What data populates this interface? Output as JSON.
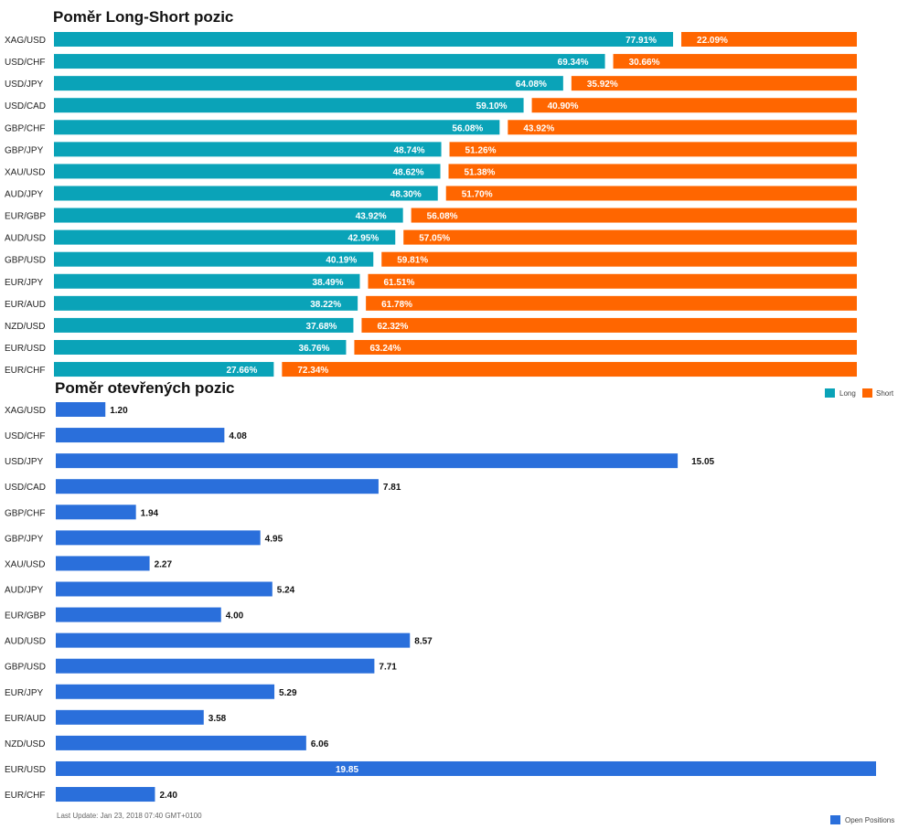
{
  "chart_data": [
    {
      "type": "bar",
      "title": "Poměr Long-Short pozic",
      "orientation": "horizontal",
      "stacked": true,
      "categories": [
        "XAG/USD",
        "USD/CHF",
        "USD/JPY",
        "USD/CAD",
        "GBP/CHF",
        "GBP/JPY",
        "XAU/USD",
        "AUD/JPY",
        "EUR/GBP",
        "AUD/USD",
        "GBP/USD",
        "EUR/JPY",
        "EUR/AUD",
        "NZD/USD",
        "EUR/USD",
        "EUR/CHF"
      ],
      "series": [
        {
          "name": "Long",
          "color": "#0aa3b8",
          "values": [
            77.91,
            69.34,
            64.08,
            59.1,
            56.08,
            48.74,
            48.62,
            48.3,
            43.92,
            42.95,
            40.19,
            38.49,
            38.22,
            37.68,
            36.76,
            27.66
          ]
        },
        {
          "name": "Short",
          "color": "#ff6600",
          "values": [
            22.09,
            30.66,
            35.92,
            40.9,
            43.92,
            51.26,
            51.38,
            51.7,
            56.08,
            57.05,
            59.81,
            61.51,
            61.78,
            62.32,
            63.24,
            72.34
          ]
        }
      ],
      "labels_long": [
        "77.91%",
        "69.34%",
        "64.08%",
        "59.10%",
        "56.08%",
        "48.74%",
        "48.62%",
        "48.30%",
        "43.92%",
        "42.95%",
        "40.19%",
        "38.49%",
        "38.22%",
        "37.68%",
        "36.76%",
        "27.66%"
      ],
      "labels_short": [
        "22.09%",
        "30.66%",
        "35.92%",
        "40.90%",
        "43.92%",
        "51.26%",
        "51.38%",
        "51.70%",
        "56.08%",
        "57.05%",
        "59.81%",
        "61.51%",
        "61.78%",
        "62.32%",
        "63.24%",
        "72.34%"
      ],
      "xlim": [
        0,
        100
      ],
      "legend": "top-right",
      "grid": false
    },
    {
      "type": "bar",
      "title": "Poměr otevřených pozic",
      "orientation": "horizontal",
      "categories": [
        "XAG/USD",
        "USD/CHF",
        "USD/JPY",
        "USD/CAD",
        "GBP/CHF",
        "GBP/JPY",
        "XAU/USD",
        "AUD/JPY",
        "EUR/GBP",
        "AUD/USD",
        "GBP/USD",
        "EUR/JPY",
        "EUR/AUD",
        "NZD/USD",
        "EUR/USD",
        "EUR/CHF"
      ],
      "series": [
        {
          "name": "Open Positions",
          "color": "#2a6fdb",
          "values": [
            1.2,
            4.08,
            15.05,
            7.81,
            1.94,
            4.95,
            2.27,
            5.24,
            4.0,
            8.57,
            7.71,
            5.29,
            3.58,
            6.06,
            19.85,
            2.4
          ]
        }
      ],
      "labels": [
        "1.20",
        "4.08",
        "15.05",
        "7.81",
        "1.94",
        "4.95",
        "2.27",
        "5.24",
        "4.00",
        "8.57",
        "7.71",
        "5.29",
        "3.58",
        "6.06",
        "19.85",
        "2.40"
      ],
      "xlim": [
        0,
        19.85
      ],
      "legend": "bottom-right",
      "grid": false
    }
  ],
  "legend_top": {
    "long_label": "Long",
    "short_label": "Short"
  },
  "legend_bottom": {
    "label": "Open Positions"
  },
  "footer": {
    "last_update": "Last Update: Jan 23, 2018 07:40 GMT+0100"
  }
}
